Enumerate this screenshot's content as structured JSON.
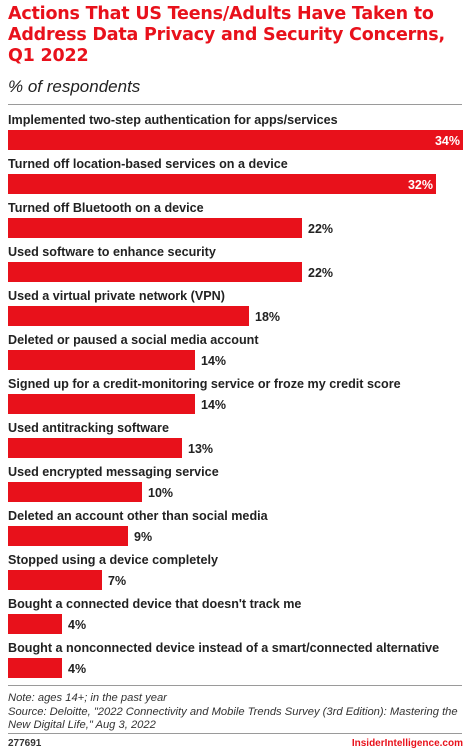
{
  "chart_data": {
    "type": "bar",
    "orientation": "horizontal",
    "title": "Actions That US Teens/Adults Have Taken to Address Data Privacy and Security Concerns, Q1 2022",
    "subtitle": "% of respondents",
    "categories": [
      "Implemented two-step authentication for apps/services",
      "Turned off location-based services on a device",
      "Turned off Bluetooth on a device",
      "Used software to enhance security",
      "Used a virtual private network (VPN)",
      "Deleted or paused a social media account",
      "Signed up for a credit-monitoring service or froze my credit score",
      "Used antitracking software",
      "Used encrypted messaging service",
      "Deleted an account other than social media",
      "Stopped using a device completely",
      "Bought a connected device that doesn't track me",
      "Bought a nonconnected device instead of a smart/connected alternative"
    ],
    "values": [
      34,
      32,
      22,
      22,
      18,
      14,
      14,
      13,
      10,
      9,
      7,
      4,
      4
    ],
    "value_labels": [
      "34%",
      "32%",
      "22%",
      "22%",
      "18%",
      "14%",
      "14%",
      "13%",
      "10%",
      "9%",
      "7%",
      "4%",
      "4%"
    ],
    "xlim": [
      0,
      34
    ],
    "grid": false,
    "legend": "none",
    "bar_color": "#e8111b"
  },
  "footer": {
    "note": "Note: ages 14+; in the past year",
    "source": "Source: Deloitte, \"2022 Connectivity and Mobile Trends Survey (3rd Edition): Mastering the New Digital Life,\" Aug 3, 2022",
    "chart_id": "277691",
    "brand": "InsiderIntelligence.com"
  }
}
